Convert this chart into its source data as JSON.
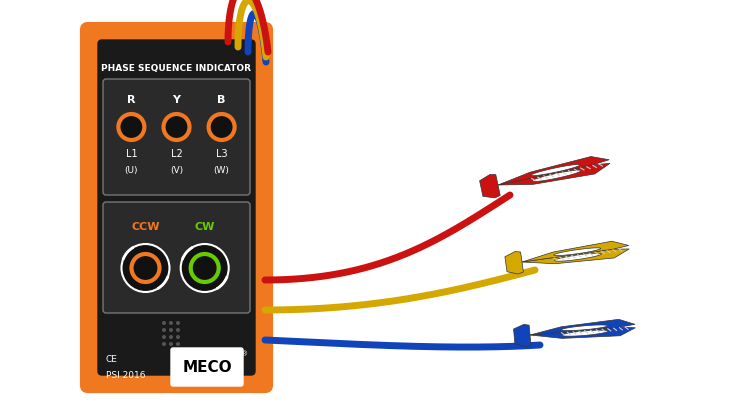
{
  "bg_color": "#ffffff",
  "orange": "#F07820",
  "black": "#1a1a1a",
  "dark_gray": "#2a2a2a",
  "wire_red": "#CC1111",
  "wire_yellow": "#D4A800",
  "wire_blue": "#1144BB",
  "led_orange": "#F07820",
  "led_green": "#66CC00",
  "title": "PHASE SEQUENCE INDICATOR",
  "led_top": [
    "R",
    "Y",
    "B"
  ],
  "led_mid": [
    "L1",
    "L2",
    "L3"
  ],
  "led_bot": [
    "(U)",
    "(V)",
    "(W)"
  ],
  "ccw_label": "CCW",
  "cw_label": "CW",
  "ce_text": "CE",
  "psi_text": "PSI 2016",
  "meco_text": "MECO"
}
